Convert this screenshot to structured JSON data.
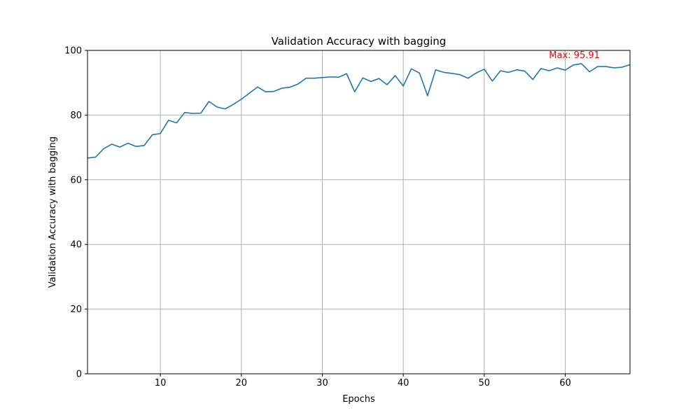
{
  "chart_data": {
    "type": "line",
    "title": "Validation Accuracy with bagging",
    "xlabel": "Epochs",
    "ylabel": "Validation Accuracy with bagging",
    "xlim": [
      1,
      68
    ],
    "ylim": [
      0,
      100
    ],
    "xticks": [
      10,
      20,
      30,
      40,
      50,
      60
    ],
    "yticks": [
      0,
      20,
      40,
      60,
      80,
      100
    ],
    "grid": true,
    "series": [
      {
        "color": "#1f77b4",
        "x": [
          1,
          2,
          3,
          4,
          5,
          6,
          7,
          8,
          9,
          10,
          11,
          12,
          13,
          14,
          15,
          16,
          17,
          18,
          19,
          20,
          21,
          22,
          23,
          24,
          25,
          26,
          27,
          28,
          29,
          30,
          31,
          32,
          33,
          34,
          35,
          36,
          37,
          38,
          39,
          40,
          41,
          42,
          43,
          44,
          45,
          46,
          47,
          48,
          49,
          50,
          51,
          52,
          53,
          54,
          55,
          56,
          57,
          58,
          59,
          60,
          61,
          62,
          63,
          64,
          65,
          66,
          67,
          68
        ],
        "values": [
          66.7,
          67.0,
          69.6,
          71.0,
          70.1,
          71.3,
          70.3,
          70.6,
          73.9,
          74.3,
          78.4,
          77.6,
          80.8,
          80.5,
          80.6,
          84.2,
          82.5,
          81.9,
          83.3,
          84.9,
          86.8,
          88.7,
          87.2,
          87.3,
          88.3,
          88.6,
          89.6,
          91.4,
          91.4,
          91.6,
          91.8,
          91.7,
          92.8,
          87.2,
          91.5,
          90.4,
          91.3,
          89.4,
          92.2,
          89.0,
          94.3,
          93.0,
          86.0,
          94.0,
          93.2,
          92.9,
          92.5,
          91.4,
          93.0,
          94.2,
          90.5,
          93.7,
          93.2,
          94.0,
          93.6,
          91.0,
          94.4,
          93.7,
          94.6,
          93.9,
          95.5,
          95.91,
          93.4,
          95.0,
          95.0,
          94.6,
          94.8,
          95.6
        ]
      }
    ],
    "annotation": {
      "text": "Max: 95.91",
      "x": 62,
      "y": 95.91,
      "color": "#ff0000"
    }
  }
}
